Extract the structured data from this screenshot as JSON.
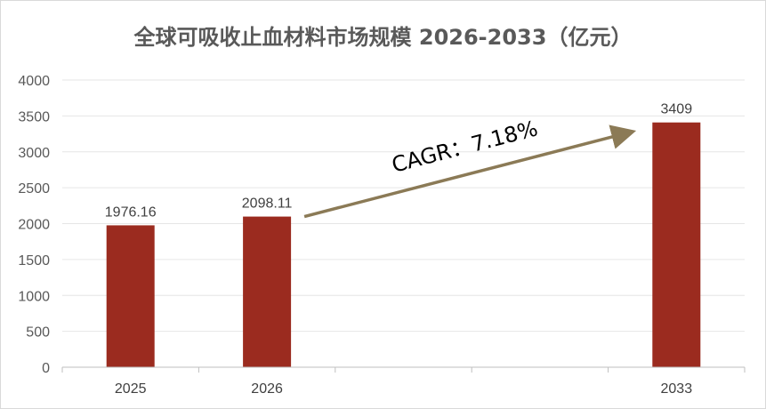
{
  "chart_data": {
    "type": "bar",
    "title": "全球可吸收止血材料市场规模 2026-2033（亿元）",
    "categories": [
      "2025",
      "2026",
      "",
      "",
      "2033"
    ],
    "values": [
      1976.16,
      2098.11,
      null,
      null,
      3409
    ],
    "data_labels": [
      "1976.16",
      "2098.11",
      "",
      "",
      "3409"
    ],
    "y_ticks": [
      "0",
      "500",
      "1000",
      "1500",
      "2000",
      "2500",
      "3000",
      "3500",
      "4000"
    ],
    "ylim": [
      0,
      4000
    ],
    "grid": true,
    "legend": "none",
    "bar_color": "#9b2b1f",
    "annotation": {
      "text": "CAGR：7.18%",
      "from_category": "2026",
      "to_category": "2033",
      "arrow_color": "#8b7a56"
    }
  }
}
